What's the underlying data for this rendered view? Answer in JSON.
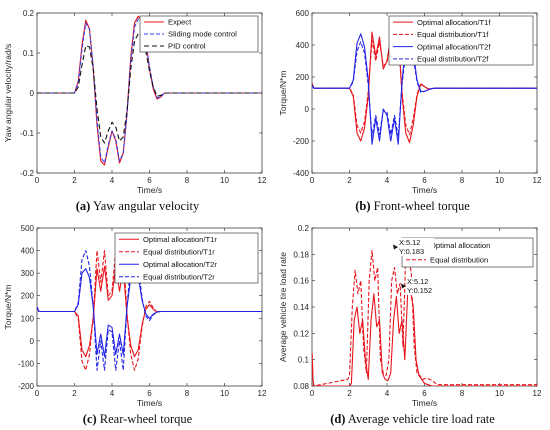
{
  "chart_data": [
    {
      "id": "a",
      "type": "line",
      "panel_label": "(a)",
      "caption": "Yaw angular velocity",
      "xlabel": "Time/s",
      "ylabel": "Yaw angular velocity/rad/s",
      "xlim": [
        0,
        12
      ],
      "ylim": [
        -0.2,
        0.2
      ],
      "xticks": [
        0,
        2,
        4,
        6,
        8,
        10,
        12
      ],
      "yticks": [
        -0.2,
        -0.1,
        0,
        0.1,
        0.2
      ],
      "ytick_labels": [
        "-0.2",
        "-0.1",
        "0",
        "0.1",
        "0.2"
      ],
      "legend_position": "top-right",
      "series": [
        {
          "name": "Expect",
          "color": "#e8141c",
          "dash": "solid",
          "x": [
            0,
            2.0,
            2.2,
            2.4,
            2.6,
            2.8,
            3.0,
            3.2,
            3.4,
            3.6,
            3.8,
            4.0,
            4.2,
            4.4,
            4.6,
            4.8,
            5.0,
            5.2,
            5.4,
            5.6,
            5.8,
            6.0,
            6.2,
            6.4,
            6.6,
            6.8,
            7.0,
            12
          ],
          "y": [
            0,
            0,
            0.03,
            0.12,
            0.182,
            0.16,
            0.06,
            -0.08,
            -0.17,
            -0.18,
            -0.135,
            -0.095,
            -0.12,
            -0.175,
            -0.15,
            -0.05,
            0.09,
            0.175,
            0.192,
            0.18,
            0.13,
            0.06,
            0.01,
            -0.015,
            -0.01,
            0,
            0,
            0
          ]
        },
        {
          "name": "Sliding mode control",
          "color": "#3b3be8",
          "dash": "4 2",
          "x": [
            0,
            2.0,
            2.2,
            2.4,
            2.6,
            2.8,
            3.0,
            3.2,
            3.4,
            3.6,
            3.8,
            4.0,
            4.2,
            4.4,
            4.6,
            4.8,
            5.0,
            5.2,
            5.4,
            5.6,
            5.8,
            6.0,
            6.2,
            6.4,
            6.6,
            6.8,
            7.0,
            12
          ],
          "y": [
            0,
            0,
            0.025,
            0.11,
            0.175,
            0.16,
            0.065,
            -0.07,
            -0.16,
            -0.175,
            -0.13,
            -0.095,
            -0.115,
            -0.17,
            -0.15,
            -0.055,
            0.08,
            0.165,
            0.185,
            0.175,
            0.13,
            0.065,
            0.015,
            -0.012,
            -0.01,
            0,
            0,
            0
          ]
        },
        {
          "name": "PID control",
          "color": "#111111",
          "dash": "5 3",
          "x": [
            0,
            2.0,
            2.2,
            2.4,
            2.6,
            2.8,
            3.0,
            3.2,
            3.4,
            3.6,
            3.8,
            4.0,
            4.2,
            4.4,
            4.6,
            4.8,
            5.0,
            5.2,
            5.4,
            5.6,
            5.8,
            6.0,
            6.2,
            6.4,
            6.6,
            6.8,
            7.0,
            12
          ],
          "y": [
            0,
            0,
            0.015,
            0.07,
            0.118,
            0.115,
            0.06,
            -0.04,
            -0.11,
            -0.125,
            -0.095,
            -0.073,
            -0.085,
            -0.12,
            -0.11,
            -0.045,
            0.06,
            0.13,
            0.148,
            0.14,
            0.105,
            0.055,
            0.015,
            -0.008,
            -0.006,
            0,
            0,
            0
          ]
        }
      ]
    },
    {
      "id": "b",
      "type": "line",
      "panel_label": "(b)",
      "caption": "Front-wheel torque",
      "xlabel": "Time/s",
      "ylabel": "Torque/N*m",
      "xlim": [
        0,
        12
      ],
      "ylim": [
        -400,
        600
      ],
      "xticks": [
        0,
        2,
        4,
        6,
        8,
        10,
        12
      ],
      "yticks": [
        -400,
        -200,
        0,
        200,
        400,
        600
      ],
      "ytick_labels": [
        "-400",
        "-200",
        "0",
        "200",
        "400",
        "600"
      ],
      "legend_position": "top-right",
      "series": [
        {
          "name": "Optimal allocation/T1f",
          "color": "#e8141c",
          "dash": "solid",
          "x": [
            0,
            0.1,
            2.0,
            2.2,
            2.4,
            2.6,
            2.8,
            3.0,
            3.2,
            3.4,
            3.6,
            3.8,
            4.0,
            4.2,
            4.4,
            4.6,
            4.8,
            5.0,
            5.2,
            5.4,
            5.6,
            5.8,
            6.0,
            6.2,
            6.4,
            6.6,
            7.0,
            12
          ],
          "y": [
            160,
            130,
            130,
            80,
            -150,
            -200,
            -120,
            80,
            480,
            330,
            450,
            250,
            300,
            450,
            330,
            480,
            90,
            -150,
            -210,
            -100,
            80,
            155,
            140,
            125,
            128,
            130,
            130,
            130
          ]
        },
        {
          "name": "Equal distribution/T1f",
          "color": "#e8141c",
          "dash": "4 2",
          "x": [
            0,
            0.1,
            2.0,
            2.2,
            2.4,
            2.6,
            2.8,
            3.0,
            3.2,
            3.4,
            3.6,
            3.8,
            4.0,
            4.2,
            4.4,
            4.6,
            4.8,
            5.0,
            5.2,
            5.4,
            5.6,
            5.8,
            6.0,
            6.2,
            6.4,
            6.6,
            7.0,
            12
          ],
          "y": [
            160,
            130,
            130,
            90,
            -100,
            -150,
            -80,
            110,
            430,
            300,
            420,
            270,
            290,
            420,
            300,
            430,
            110,
            -100,
            -160,
            -60,
            90,
            160,
            140,
            125,
            128,
            130,
            130,
            130
          ]
        },
        {
          "name": "Optimal allocation/T2f",
          "color": "#2424e6",
          "dash": "solid",
          "x": [
            0,
            0.1,
            2.0,
            2.2,
            2.4,
            2.6,
            2.8,
            3.0,
            3.2,
            3.4,
            3.6,
            3.8,
            4.0,
            4.2,
            4.4,
            4.6,
            4.8,
            5.0,
            5.2,
            5.4,
            5.6,
            5.8,
            6.0,
            6.2,
            6.4,
            6.6,
            7.0,
            12
          ],
          "y": [
            150,
            130,
            130,
            180,
            410,
            470,
            390,
            180,
            -220,
            -60,
            -200,
            0,
            -40,
            -200,
            -60,
            -220,
            170,
            410,
            480,
            360,
            180,
            110,
            110,
            120,
            128,
            130,
            130,
            130
          ]
        },
        {
          "name": "Equal distribution/T2f",
          "color": "#2424e6",
          "dash": "4 2",
          "x": [
            0,
            0.1,
            2.0,
            2.2,
            2.4,
            2.6,
            2.8,
            3.0,
            3.2,
            3.4,
            3.6,
            3.8,
            4.0,
            4.2,
            4.4,
            4.6,
            4.8,
            5.0,
            5.2,
            5.4,
            5.6,
            5.8,
            6.0,
            6.2,
            6.4,
            6.6,
            7.0,
            12
          ],
          "y": [
            150,
            130,
            130,
            170,
            360,
            420,
            350,
            150,
            -170,
            -40,
            -160,
            -10,
            -20,
            -160,
            -40,
            -170,
            150,
            360,
            430,
            320,
            170,
            105,
            110,
            120,
            128,
            130,
            130,
            130
          ]
        }
      ]
    },
    {
      "id": "c",
      "type": "line",
      "panel_label": "(c)",
      "caption": "Rear-wheel torque",
      "xlabel": "Time/s",
      "ylabel": "Torque/N*m",
      "xlim": [
        0,
        12
      ],
      "ylim": [
        -200,
        500
      ],
      "xticks": [
        0,
        2,
        4,
        6,
        8,
        10,
        12
      ],
      "yticks": [
        -200,
        -100,
        0,
        100,
        200,
        300,
        400,
        500
      ],
      "ytick_labels": [
        "-200",
        "-100",
        "0",
        "100",
        "200",
        "300",
        "400",
        "500"
      ],
      "legend_position": "top-right",
      "series": [
        {
          "name": "Optimal allocation/T1r",
          "color": "#e8141c",
          "dash": "solid",
          "x": [
            0,
            0.1,
            2.0,
            2.2,
            2.4,
            2.6,
            2.8,
            3.0,
            3.2,
            3.4,
            3.6,
            3.8,
            4.0,
            4.2,
            4.4,
            4.6,
            4.8,
            5.0,
            5.2,
            5.4,
            5.6,
            5.8,
            6.0,
            6.2,
            6.4,
            6.6,
            7.0,
            12
          ],
          "y": [
            150,
            130,
            130,
            110,
            -40,
            -70,
            -20,
            100,
            320,
            220,
            330,
            180,
            200,
            330,
            220,
            320,
            110,
            -20,
            -70,
            -40,
            70,
            140,
            160,
            140,
            128,
            130,
            130,
            130
          ]
        },
        {
          "name": "Equal distribution/T1r",
          "color": "#e8141c",
          "dash": "4 2",
          "x": [
            0,
            0.1,
            2.0,
            2.2,
            2.4,
            2.6,
            2.8,
            3.0,
            3.2,
            3.4,
            3.6,
            3.8,
            4.0,
            4.2,
            4.4,
            4.6,
            4.8,
            5.0,
            5.2,
            5.4,
            5.6,
            5.8,
            6.0,
            6.2,
            6.4,
            6.6,
            7.0,
            12
          ],
          "y": [
            150,
            130,
            130,
            100,
            -90,
            -130,
            -60,
            110,
            400,
            260,
            400,
            200,
            220,
            400,
            260,
            400,
            120,
            -60,
            -130,
            -80,
            60,
            150,
            175,
            145,
            128,
            130,
            130,
            130
          ]
        },
        {
          "name": "Optimal allocation/T2r",
          "color": "#2424e6",
          "dash": "solid",
          "x": [
            0,
            0.1,
            2.0,
            2.2,
            2.4,
            2.6,
            2.8,
            3.0,
            3.2,
            3.4,
            3.6,
            3.8,
            4.0,
            4.2,
            4.4,
            4.6,
            4.8,
            5.0,
            5.2,
            5.4,
            5.6,
            5.8,
            6.0,
            6.2,
            6.4,
            6.6,
            7.0,
            12
          ],
          "y": [
            150,
            130,
            130,
            160,
            300,
            320,
            280,
            150,
            -60,
            30,
            -70,
            70,
            60,
            -60,
            30,
            -60,
            150,
            280,
            320,
            290,
            180,
            120,
            100,
            118,
            128,
            130,
            130,
            130
          ]
        },
        {
          "name": "Equal distribution/T2r",
          "color": "#2424e6",
          "dash": "4 2",
          "x": [
            0,
            0.1,
            2.0,
            2.2,
            2.4,
            2.6,
            2.8,
            3.0,
            3.2,
            3.4,
            3.6,
            3.8,
            4.0,
            4.2,
            4.4,
            4.6,
            4.8,
            5.0,
            5.2,
            5.4,
            5.6,
            5.8,
            6.0,
            6.2,
            6.4,
            6.6,
            7.0,
            12
          ],
          "y": [
            150,
            130,
            130,
            170,
            360,
            400,
            330,
            150,
            -130,
            0,
            -130,
            50,
            40,
            -130,
            0,
            -130,
            150,
            340,
            400,
            340,
            190,
            110,
            90,
            115,
            128,
            130,
            130,
            130
          ]
        }
      ]
    },
    {
      "id": "d",
      "type": "line",
      "panel_label": "(d)",
      "caption": "Average vehicle tire load rate",
      "xlabel": "Time/s",
      "ylabel": "Average vehicle tire load rate",
      "xlim": [
        0,
        12
      ],
      "ylim": [
        0.08,
        0.2
      ],
      "xticks": [
        0,
        2,
        4,
        6,
        8,
        10,
        12
      ],
      "yticks": [
        0.08,
        0.1,
        0.12,
        0.14,
        0.16,
        0.18,
        0.2
      ],
      "ytick_labels": [
        "0.08",
        "0.1",
        "0.12",
        "0.14",
        "0.16",
        "0.18",
        "0.2"
      ],
      "legend_position": "top-right",
      "series": [
        {
          "name": "Optimal allocation",
          "color": "#e8141c",
          "dash": "solid",
          "x": [
            0,
            0.02,
            0.05,
            0.1,
            2.0,
            2.1,
            2.25,
            2.4,
            2.55,
            2.7,
            2.85,
            3.0,
            3.15,
            3.3,
            3.45,
            3.6,
            3.75,
            3.9,
            4.05,
            4.2,
            4.35,
            4.5,
            4.65,
            4.8,
            4.95,
            5.1,
            5.25,
            5.4,
            5.55,
            5.7,
            5.85,
            6.0,
            6.2,
            6.4,
            6.6,
            12
          ],
          "y": [
            0.105,
            0.1,
            0.085,
            0.08,
            0.08,
            0.082,
            0.13,
            0.14,
            0.12,
            0.13,
            0.1,
            0.085,
            0.13,
            0.15,
            0.125,
            0.13,
            0.09,
            0.085,
            0.084,
            0.09,
            0.13,
            0.148,
            0.12,
            0.13,
            0.1,
            0.15,
            0.152,
            0.14,
            0.1,
            0.088,
            0.085,
            0.082,
            0.081,
            0.08,
            0.08,
            0.08
          ]
        },
        {
          "name": "Equal distribution",
          "color": "#e8141c",
          "dash": "4 2",
          "x": [
            0,
            0.02,
            0.05,
            0.1,
            1.9,
            2.0,
            2.15,
            2.3,
            2.45,
            2.6,
            2.75,
            2.9,
            3.05,
            3.2,
            3.35,
            3.5,
            3.65,
            3.8,
            3.95,
            4.1,
            4.25,
            4.4,
            4.55,
            4.7,
            4.85,
            5.0,
            5.12,
            5.3,
            5.45,
            5.6,
            5.75,
            5.9,
            6.1,
            6.3,
            6.5,
            6.7,
            12
          ],
          "y": [
            0.105,
            0.1,
            0.085,
            0.08,
            0.085,
            0.088,
            0.14,
            0.168,
            0.15,
            0.16,
            0.11,
            0.09,
            0.16,
            0.183,
            0.16,
            0.17,
            0.1,
            0.09,
            0.088,
            0.1,
            0.16,
            0.17,
            0.15,
            0.158,
            0.11,
            0.18,
            0.183,
            0.165,
            0.11,
            0.09,
            0.088,
            0.085,
            0.086,
            0.085,
            0.083,
            0.081,
            0.081
          ]
        }
      ],
      "annotations": [
        {
          "x": 5.12,
          "y": 0.183,
          "text_x": "X:5.12",
          "text_y": "Y:0.183"
        },
        {
          "x": 5.12,
          "y": 0.152,
          "text_x": "X:5.12",
          "text_y": "Y:0.152"
        }
      ]
    }
  ]
}
